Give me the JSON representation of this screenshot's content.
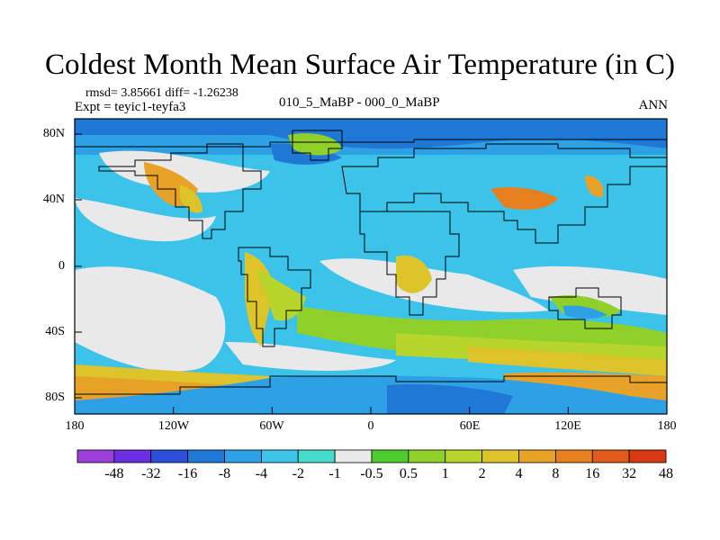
{
  "title": "Coldest Month Mean Surface Air Temperature (in C)",
  "stats_line": "rmsd= 3.85661 diff= -1.26238",
  "expt_line": "Expt = teyic1-teyfa3",
  "experiment_line": "010_5_MaBP - 000_0_MaBP",
  "season": "ANN",
  "lat_labels": [
    "80N",
    "40N",
    "0",
    "40S",
    "80S"
  ],
  "lon_labels": [
    "180",
    "120W",
    "60W",
    "0",
    "60E",
    "120E",
    "180"
  ],
  "colorbar": {
    "labels": [
      "-48",
      "-32",
      "-16",
      "-8",
      "-4",
      "-2",
      "-1",
      "-0.5",
      "0.5",
      "1",
      "2",
      "4",
      "8",
      "16",
      "32",
      "48"
    ],
    "colors": [
      "#9b3fd8",
      "#6a2fe0",
      "#2b4fd6",
      "#1f78d6",
      "#2ea1e6",
      "#3cc3ea",
      "#45dcc9",
      "#e9e9e9",
      "#4ccc2e",
      "#8fd12a",
      "#b8d52b",
      "#dcc42a",
      "#e8a228",
      "#e6801f",
      "#e05a1a",
      "#d83a12"
    ]
  },
  "colors": {
    "ocean_base": "#3cc3ea",
    "neutral": "#e9e9e9",
    "coast_line": "#000000"
  }
}
